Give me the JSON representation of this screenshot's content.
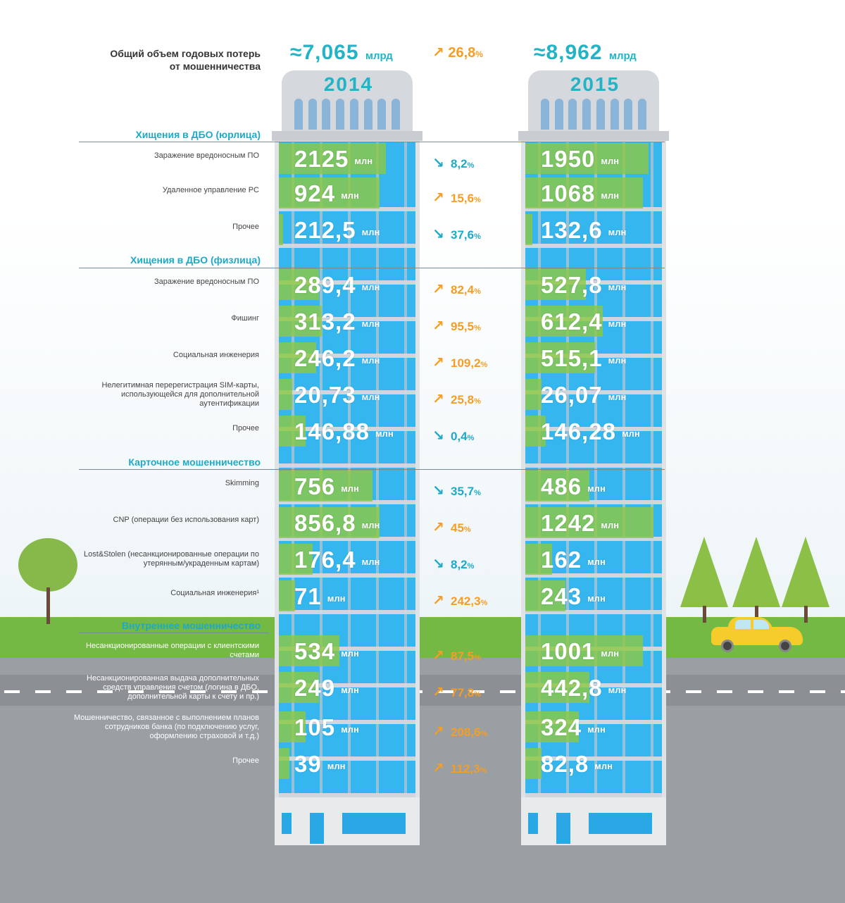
{
  "header": {
    "label": "Общий объем годовых потерь от мошенничества",
    "total_2014": "≈7,065",
    "total_2015": "≈8,962",
    "unit": "млрд",
    "change": "26,8",
    "change_symbol": "%",
    "year_2014": "2014",
    "year_2015": "2015"
  },
  "unit_mln": "млн",
  "colors": {
    "accent": "#22b4c6",
    "up": "#f59d24",
    "down": "#1fa9c6",
    "glass": "#36b6ee",
    "bar": "#8cc846",
    "grass": "#73b944",
    "road": "#9a9fa3"
  },
  "sections": [
    {
      "title": "Хищения в ДБО (юрлица)"
    },
    {
      "title": "Хищения в ДБО (физлица)"
    },
    {
      "title": "Карточное мошенничество"
    },
    {
      "title": "Внутреннее мошенничество"
    }
  ],
  "chart_data": {
    "type": "bar",
    "title": "Общий объем годовых потерь от мошенничества",
    "unit": "млн",
    "totals": {
      "2014": "≈7,065 млрд",
      "2015": "≈8,962 млрд",
      "change": "26,8%",
      "direction": "up"
    },
    "series": [
      {
        "name": "2014"
      },
      {
        "name": "2015"
      }
    ],
    "rows": [
      {
        "section": "Хищения в ДБО (юрлица)",
        "label": "Заражение вредоносным ПО",
        "v2014": "2125",
        "v2015": "1950",
        "change": "8,2",
        "dir": "down"
      },
      {
        "section": "Хищения в ДБО (юрлица)",
        "label": "Удаленное управление PC",
        "v2014": "924",
        "v2015": "1068",
        "change": "15,6",
        "dir": "up"
      },
      {
        "section": "Хищения в ДБО (юрлица)",
        "label": "Прочее",
        "v2014": "212,5",
        "v2015": "132,6",
        "change": "37,6",
        "dir": "down"
      },
      {
        "section": "Хищения в ДБО (физлица)",
        "label": "Заражение вредоносным ПО",
        "v2014": "289,4",
        "v2015": "527,8",
        "change": "82,4",
        "dir": "up"
      },
      {
        "section": "Хищения в ДБО (физлица)",
        "label": "Фишинг",
        "v2014": "313,2",
        "v2015": "612,4",
        "change": "95,5",
        "dir": "up"
      },
      {
        "section": "Хищения в ДБО (физлица)",
        "label": "Социальная инженерия",
        "v2014": "246,2",
        "v2015": "515,1",
        "change": "109,2",
        "dir": "up"
      },
      {
        "section": "Хищения в ДБО (физлица)",
        "label": "Нелегитимная перерегистрация SIM-карты, использующейся для дополнительной аутентификации",
        "v2014": "20,73",
        "v2015": "26,07",
        "change": "25,8",
        "dir": "up"
      },
      {
        "section": "Хищения в ДБО (физлица)",
        "label": "Прочее",
        "v2014": "146,88",
        "v2015": "146,28",
        "change": "0,4",
        "dir": "down"
      },
      {
        "section": "Карточное мошенничество",
        "label": "Skimming",
        "v2014": "756",
        "v2015": "486",
        "change": "35,7",
        "dir": "down"
      },
      {
        "section": "Карточное мошенничество",
        "label": "CNP (операции без использования карт)",
        "v2014": "856,8",
        "v2015": "1242",
        "change": "45",
        "dir": "up"
      },
      {
        "section": "Карточное мошенничество",
        "label": "Lost&Stolen (несанкционированные операции по утерянным/украденным картам)",
        "v2014": "176,4",
        "v2015": "162",
        "change": "8,2",
        "dir": "down"
      },
      {
        "section": "Карточное мошенничество",
        "label": "Социальная инженерия¹",
        "v2014": "71",
        "v2015": "243",
        "change": "242,3",
        "dir": "up"
      },
      {
        "section": "Внутреннее мошенничество",
        "label": "Несанкционированные операции с клиентскими счетами",
        "v2014": "534",
        "v2015": "1001",
        "change": "87,5",
        "dir": "up"
      },
      {
        "section": "Внутреннее мошенничество",
        "label": "Несанкционированная выдача дополнительных средств управления счетом (логина в ДБО, дополнительной карты к счету и пр.)",
        "v2014": "249",
        "v2015": "442,8",
        "change": "77,8",
        "dir": "up"
      },
      {
        "section": "Внутреннее мошенничество",
        "label": "Мошенничество, связанное с выполнением планов сотрудников банка (по подключению услуг, оформлению страховой и т.д.)",
        "v2014": "105",
        "v2015": "324",
        "change": "208,6",
        "dir": "up"
      },
      {
        "section": "Внутреннее мошенничество",
        "label": "Прочее",
        "v2014": "39",
        "v2015": "82,8",
        "change": "112,3",
        "dir": "up"
      }
    ],
    "bar_fill_fraction": {
      "2014": [
        0.8,
        0.75,
        0.03,
        0.3,
        0.32,
        0.28,
        0.1,
        0.2,
        0.7,
        0.75,
        0.25,
        0.12,
        0.45,
        0.3,
        0.2,
        0.08
      ],
      "2015": [
        0.92,
        0.88,
        0.05,
        0.45,
        0.58,
        0.52,
        0.12,
        0.15,
        0.48,
        0.96,
        0.2,
        0.3,
        0.88,
        0.48,
        0.4,
        0.12
      ]
    }
  }
}
